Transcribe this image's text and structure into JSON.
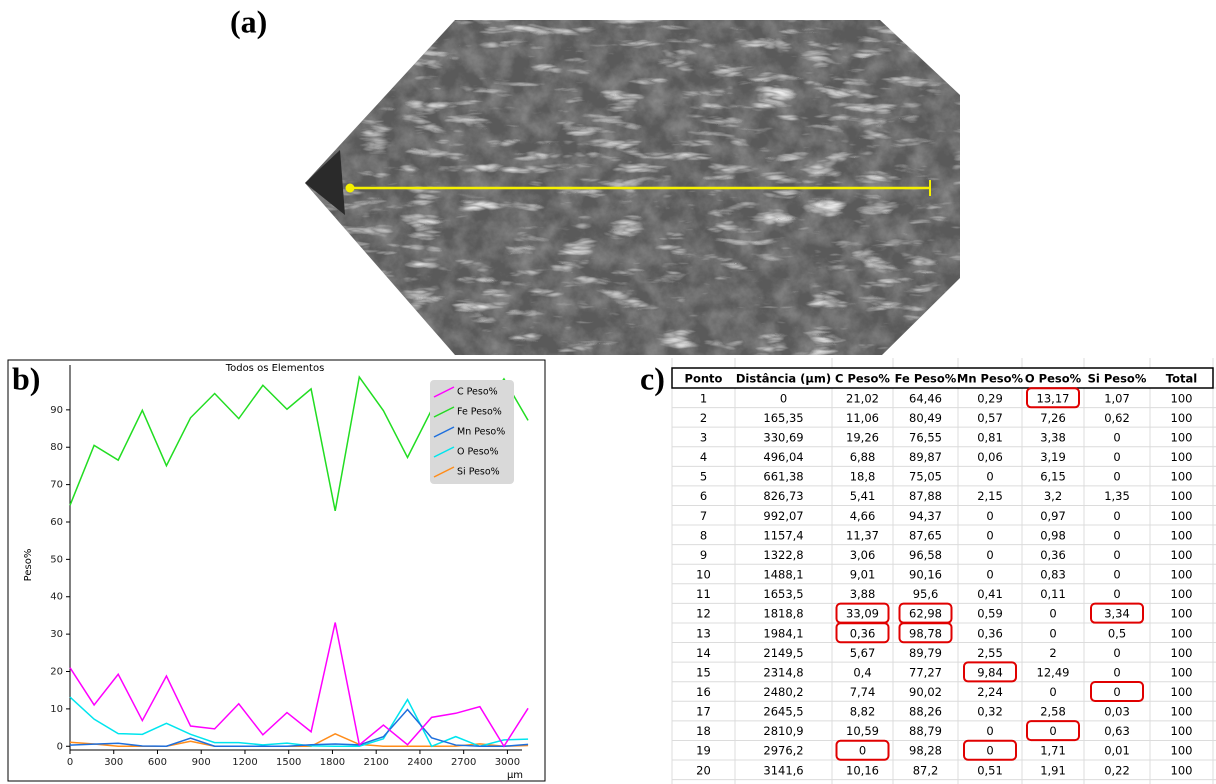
{
  "panel_labels": {
    "a": "(a)",
    "b": "b)",
    "c": "c)"
  },
  "chart_data": {
    "type": "line",
    "title": "Todos os Elementos",
    "y_label": "Peso%",
    "x_label": "µm",
    "x": [
      0,
      165.35,
      330.69,
      496.04,
      661.38,
      826.73,
      992.07,
      1157.4,
      1322.8,
      1488.1,
      1653.5,
      1818.8,
      1984.1,
      2149.5,
      2314.8,
      2480.2,
      2645.5,
      2810.9,
      2976.2,
      3141.6
    ],
    "series": [
      {
        "name": "C Peso%",
        "color": "#ff00ff",
        "values": [
          21.02,
          11.06,
          19.26,
          6.88,
          18.8,
          5.41,
          4.66,
          11.37,
          3.06,
          9.01,
          3.88,
          33.09,
          0.36,
          5.67,
          0.4,
          7.74,
          8.82,
          10.59,
          0,
          10.16
        ]
      },
      {
        "name": "Fe Peso%",
        "color": "#22dd22",
        "values": [
          64.46,
          80.49,
          76.55,
          89.87,
          75.05,
          87.88,
          94.37,
          87.65,
          96.58,
          90.16,
          95.6,
          62.98,
          98.78,
          89.79,
          77.27,
          90.02,
          88.26,
          88.79,
          98.28,
          87.2
        ]
      },
      {
        "name": "Mn Peso%",
        "color": "#1e6fdd",
        "values": [
          0.29,
          0.57,
          0.81,
          0.06,
          0,
          2.15,
          0,
          0,
          0,
          0,
          0.41,
          0.59,
          0.36,
          2.55,
          9.84,
          2.24,
          0.32,
          0,
          0,
          0.51
        ]
      },
      {
        "name": "O Peso%",
        "color": "#00e5ee",
        "values": [
          13.17,
          7.26,
          3.38,
          3.19,
          6.15,
          3.2,
          0.97,
          0.98,
          0.36,
          0.83,
          0.11,
          0,
          0,
          2,
          12.49,
          0,
          2.58,
          0,
          1.71,
          1.91
        ]
      },
      {
        "name": "Si Peso%",
        "color": "#ff8c1a",
        "values": [
          1.07,
          0.62,
          0,
          0,
          0,
          1.35,
          0,
          0,
          0,
          0,
          0,
          3.34,
          0.5,
          0,
          0,
          0,
          0.03,
          0.63,
          0.01,
          0.22
        ]
      }
    ],
    "xlim": [
      0,
      3100
    ],
    "ylim": [
      -1,
      102
    ],
    "xticks": [
      0,
      300,
      600,
      900,
      1200,
      1500,
      1800,
      2100,
      2400,
      2700,
      3000
    ],
    "yticks": [
      0,
      10,
      20,
      30,
      40,
      50,
      60,
      70,
      80,
      90
    ],
    "grid": false,
    "legend": "upper right"
  },
  "table": {
    "header": [
      "Ponto",
      "Distância (µm)",
      "C Peso%",
      "Fe Peso%",
      "Mn Peso%",
      "O Peso%",
      "Si Peso%",
      "Total"
    ],
    "rows": [
      [
        "1",
        "0",
        "21,02",
        "64,46",
        "0,29",
        "13,17",
        "1,07",
        "100"
      ],
      [
        "2",
        "165,35",
        "11,06",
        "80,49",
        "0,57",
        "7,26",
        "0,62",
        "100"
      ],
      [
        "3",
        "330,69",
        "19,26",
        "76,55",
        "0,81",
        "3,38",
        "0",
        "100"
      ],
      [
        "4",
        "496,04",
        "6,88",
        "89,87",
        "0,06",
        "3,19",
        "0",
        "100"
      ],
      [
        "5",
        "661,38",
        "18,8",
        "75,05",
        "0",
        "6,15",
        "0",
        "100"
      ],
      [
        "6",
        "826,73",
        "5,41",
        "87,88",
        "2,15",
        "3,2",
        "1,35",
        "100"
      ],
      [
        "7",
        "992,07",
        "4,66",
        "94,37",
        "0",
        "0,97",
        "0",
        "100"
      ],
      [
        "8",
        "1157,4",
        "11,37",
        "87,65",
        "0",
        "0,98",
        "0",
        "100"
      ],
      [
        "9",
        "1322,8",
        "3,06",
        "96,58",
        "0",
        "0,36",
        "0",
        "100"
      ],
      [
        "10",
        "1488,1",
        "9,01",
        "90,16",
        "0",
        "0,83",
        "0",
        "100"
      ],
      [
        "11",
        "1653,5",
        "3,88",
        "95,6",
        "0,41",
        "0,11",
        "0",
        "100"
      ],
      [
        "12",
        "1818,8",
        "33,09",
        "62,98",
        "0,59",
        "0",
        "3,34",
        "100"
      ],
      [
        "13",
        "1984,1",
        "0,36",
        "98,78",
        "0,36",
        "0",
        "0,5",
        "100"
      ],
      [
        "14",
        "2149,5",
        "5,67",
        "89,79",
        "2,55",
        "2",
        "0",
        "100"
      ],
      [
        "15",
        "2314,8",
        "0,4",
        "77,27",
        "9,84",
        "12,49",
        "0",
        "100"
      ],
      [
        "16",
        "2480,2",
        "7,74",
        "90,02",
        "2,24",
        "0",
        "0",
        "100"
      ],
      [
        "17",
        "2645,5",
        "8,82",
        "88,26",
        "0,32",
        "2,58",
        "0,03",
        "100"
      ],
      [
        "18",
        "2810,9",
        "10,59",
        "88,79",
        "0",
        "0",
        "0,63",
        "100"
      ],
      [
        "19",
        "2976,2",
        "0",
        "98,28",
        "0",
        "1,71",
        "0,01",
        "100"
      ],
      [
        "20",
        "3141,6",
        "10,16",
        "87,2",
        "0,51",
        "1,91",
        "0,22",
        "100"
      ]
    ]
  }
}
